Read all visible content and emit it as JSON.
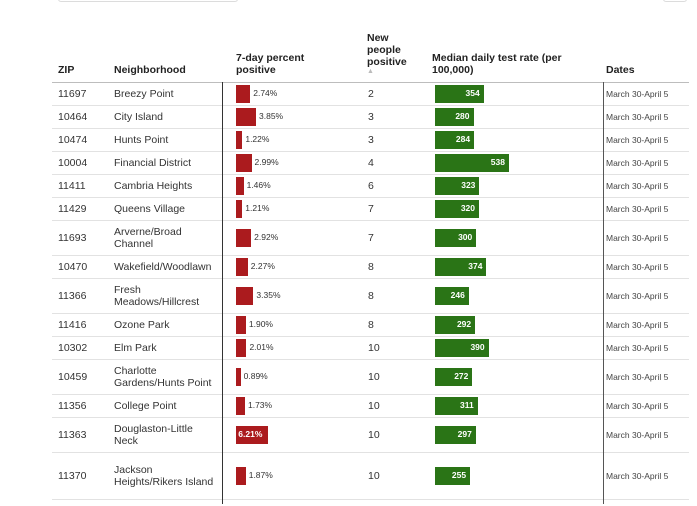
{
  "chart_data": {
    "type": "table",
    "columns": {
      "zip": "ZIP",
      "neighborhood": "Neighborhood",
      "percent": "7-day percent positive",
      "new_positive": "New people positive",
      "test_rate": "Median daily test rate (per 100,000)",
      "dates": "Dates"
    },
    "sort_icon": "sort-ascending-icon",
    "colors": {
      "percent_bar": "#ab1b1e",
      "rate_bar": "#2a7416"
    },
    "rows": [
      {
        "zip": "11697",
        "neighborhood": "Breezy Point",
        "percent_label": "2.74%",
        "percent": 2.74,
        "new_positive": "2",
        "rate": 354,
        "rate_label": "354",
        "dates": "March 30-April 5"
      },
      {
        "zip": "10464",
        "neighborhood": "City Island",
        "percent_label": "3.85%",
        "percent": 3.85,
        "new_positive": "3",
        "rate": 280,
        "rate_label": "280",
        "dates": "March 30-April 5"
      },
      {
        "zip": "10474",
        "neighborhood": "Hunts Point",
        "percent_label": "1.22%",
        "percent": 1.22,
        "new_positive": "3",
        "rate": 284,
        "rate_label": "284",
        "dates": "March 30-April 5"
      },
      {
        "zip": "10004",
        "neighborhood": "Financial District",
        "percent_label": "2.99%",
        "percent": 2.99,
        "new_positive": "4",
        "rate": 538,
        "rate_label": "538",
        "dates": "March 30-April 5"
      },
      {
        "zip": "11411",
        "neighborhood": "Cambria Heights",
        "percent_label": "1.46%",
        "percent": 1.46,
        "new_positive": "6",
        "rate": 323,
        "rate_label": "323",
        "dates": "March 30-April 5"
      },
      {
        "zip": "11429",
        "neighborhood": "Queens Village",
        "percent_label": "1.21%",
        "percent": 1.21,
        "new_positive": "7",
        "rate": 320,
        "rate_label": "320",
        "dates": "March 30-April 5"
      },
      {
        "zip": "11693",
        "neighborhood": "Arverne/Broad Channel",
        "percent_label": "2.92%",
        "percent": 2.92,
        "new_positive": "7",
        "rate": 300,
        "rate_label": "300",
        "dates": "March 30-April 5"
      },
      {
        "zip": "10470",
        "neighborhood": "Wakefield/Woodlawn",
        "percent_label": "2.27%",
        "percent": 2.27,
        "new_positive": "8",
        "rate": 374,
        "rate_label": "374",
        "dates": "March 30-April 5"
      },
      {
        "zip": "11366",
        "neighborhood": "Fresh Meadows/Hillcrest",
        "percent_label": "3.35%",
        "percent": 3.35,
        "new_positive": "8",
        "rate": 246,
        "rate_label": "246",
        "dates": "March 30-April 5"
      },
      {
        "zip": "11416",
        "neighborhood": "Ozone Park",
        "percent_label": "1.90%",
        "percent": 1.9,
        "new_positive": "8",
        "rate": 292,
        "rate_label": "292",
        "dates": "March 30-April 5"
      },
      {
        "zip": "10302",
        "neighborhood": "Elm Park",
        "percent_label": "2.01%",
        "percent": 2.01,
        "new_positive": "10",
        "rate": 390,
        "rate_label": "390",
        "dates": "March 30-April 5"
      },
      {
        "zip": "10459",
        "neighborhood": "Charlotte Gardens/Hunts Point",
        "percent_label": "0.89%",
        "percent": 0.89,
        "new_positive": "10",
        "rate": 272,
        "rate_label": "272",
        "dates": "March 30-April 5"
      },
      {
        "zip": "11356",
        "neighborhood": "College Point",
        "percent_label": "1.73%",
        "percent": 1.73,
        "new_positive": "10",
        "rate": 311,
        "rate_label": "311",
        "dates": "March 30-April 5"
      },
      {
        "zip": "11363",
        "neighborhood": "Douglaston-Little Neck",
        "percent_label": "6.21%",
        "percent": 6.21,
        "new_positive": "10",
        "rate": 297,
        "rate_label": "297",
        "dates": "March 30-April 5"
      },
      {
        "zip": "11370",
        "neighborhood": "Jackson Heights/Rikers Island",
        "percent_label": "1.87%",
        "percent": 1.87,
        "new_positive": "10",
        "rate": 255,
        "rate_label": "255",
        "dates": "March 30-April 5"
      }
    ]
  }
}
